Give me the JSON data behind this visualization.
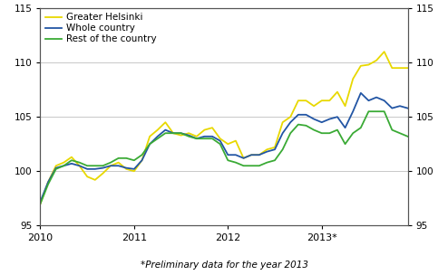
{
  "footnote": "*Preliminary data for the year 2013",
  "xlabel_ticks": [
    "2010",
    "2011",
    "2012",
    "2013*"
  ],
  "xlabel_tick_positions": [
    0,
    12,
    24,
    36
  ],
  "ylim": [
    95,
    115
  ],
  "yticks": [
    95,
    100,
    105,
    110,
    115
  ],
  "legend": [
    "Greater Helsinki",
    "Whole country",
    "Rest of the country"
  ],
  "colors": [
    "#e8d800",
    "#2255a4",
    "#3aaa35"
  ],
  "linewidth": 1.3,
  "greater_helsinki": [
    97.0,
    99.0,
    100.5,
    100.8,
    101.3,
    100.5,
    99.5,
    99.2,
    99.8,
    100.5,
    100.8,
    100.2,
    100.0,
    101.0,
    103.2,
    103.8,
    104.5,
    103.5,
    103.3,
    103.5,
    103.2,
    103.8,
    104.0,
    103.0,
    102.5,
    102.8,
    101.2,
    101.5,
    101.5,
    102.0,
    102.2,
    104.5,
    105.0,
    106.5,
    106.5,
    106.0,
    106.5,
    106.5,
    107.3,
    106.0,
    108.5,
    109.7,
    109.8,
    110.2,
    111.0,
    109.5,
    109.5,
    109.5
  ],
  "whole_country": [
    97.2,
    99.0,
    100.3,
    100.5,
    100.7,
    100.5,
    100.2,
    100.2,
    100.3,
    100.5,
    100.5,
    100.3,
    100.2,
    101.0,
    102.5,
    103.2,
    103.8,
    103.5,
    103.5,
    103.3,
    103.0,
    103.2,
    103.2,
    102.8,
    101.5,
    101.5,
    101.2,
    101.5,
    101.5,
    101.8,
    102.0,
    103.5,
    104.5,
    105.2,
    105.2,
    104.8,
    104.5,
    104.8,
    105.0,
    104.0,
    105.5,
    107.2,
    106.5,
    106.8,
    106.5,
    105.8,
    106.0,
    105.8
  ],
  "rest_of_country": [
    97.0,
    98.8,
    100.2,
    100.5,
    101.0,
    100.8,
    100.5,
    100.5,
    100.5,
    100.8,
    101.2,
    101.2,
    101.0,
    101.5,
    102.5,
    103.0,
    103.5,
    103.5,
    103.5,
    103.2,
    103.0,
    103.0,
    103.0,
    102.5,
    101.0,
    100.8,
    100.5,
    100.5,
    100.5,
    100.8,
    101.0,
    102.0,
    103.5,
    104.3,
    104.2,
    103.8,
    103.5,
    103.5,
    103.8,
    102.5,
    103.5,
    104.0,
    105.5,
    105.5,
    105.5,
    103.8,
    103.5,
    103.2
  ],
  "bg_color": "#ffffff",
  "grid_color": "#c8c8c8",
  "spine_color": "#555555"
}
